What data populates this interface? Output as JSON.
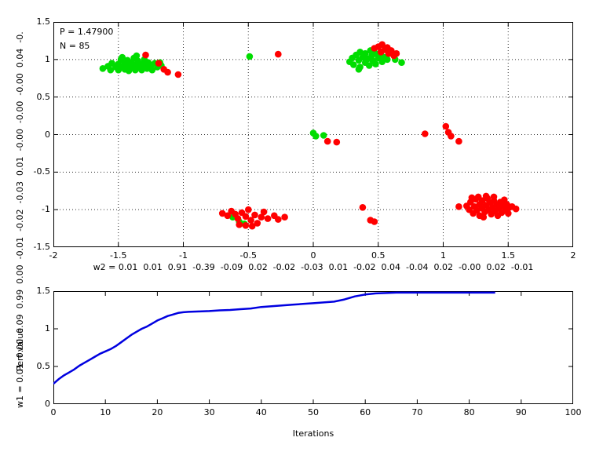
{
  "figure": {
    "background": "#ffffff",
    "axis_color": "#000000",
    "grid_color": "#303030"
  },
  "chart_data": [
    {
      "type": "scatter",
      "title": "",
      "xlabel": "w2 = 0.01  0.01  0.91  -0.39  -0.09  0.02  -0.02  -0.03  0.01  -0.02  0.04  -0.04  0.02  -0.00  0.02  -0.01",
      "ylabel": "w1 = 0.01  0.00  0.09  0.99  0.00  -0.01  -0.02  -0.03  0.01  -0.00  -0.00  -0.00  0.04  -0.",
      "xlim": [
        -2,
        2
      ],
      "ylim": [
        -1.5,
        1.5
      ],
      "xticks": [
        -2,
        -1.5,
        -1,
        -0.5,
        0,
        0.5,
        1,
        1.5,
        2
      ],
      "xtick_labels": [
        "-2",
        "-1.5",
        "-1",
        "-0.5",
        "0",
        "0.5",
        "1",
        "1.5",
        "2"
      ],
      "yticks": [
        -1.5,
        -1,
        -0.5,
        0,
        0.5,
        1,
        1.5
      ],
      "ytick_labels": [
        "-1.5",
        "-1",
        "-0.5",
        "0",
        "0.5",
        "1",
        "1.5"
      ],
      "grid": true,
      "annotations": [
        "P = 1.47900",
        "N = 85"
      ],
      "marker_radius": 4.3,
      "series": [
        {
          "name": "green-points",
          "color": "#00dd00",
          "points": [
            [
              -1.62,
              0.88
            ],
            [
              -1.58,
              0.91
            ],
            [
              -1.56,
              0.86
            ],
            [
              -1.55,
              0.95
            ],
            [
              -1.52,
              0.9
            ],
            [
              -1.5,
              0.94
            ],
            [
              -1.5,
              0.86
            ],
            [
              -1.48,
              1.0
            ],
            [
              -1.47,
              0.9
            ],
            [
              -1.45,
              0.95
            ],
            [
              -1.45,
              0.87
            ],
            [
              -1.43,
              0.99
            ],
            [
              -1.43,
              0.91
            ],
            [
              -1.42,
              0.85
            ],
            [
              -1.4,
              0.96
            ],
            [
              -1.4,
              0.89
            ],
            [
              -1.38,
              1.02
            ],
            [
              -1.38,
              0.93
            ],
            [
              -1.37,
              0.86
            ],
            [
              -1.35,
              0.98
            ],
            [
              -1.35,
              0.9
            ],
            [
              -1.33,
              0.94
            ],
            [
              -1.32,
              0.86
            ],
            [
              -1.3,
              1.0
            ],
            [
              -1.3,
              0.92
            ],
            [
              -1.28,
              0.88
            ],
            [
              -1.27,
              0.96
            ],
            [
              -1.25,
              0.92
            ],
            [
              -1.24,
              0.86
            ],
            [
              -1.22,
              0.95
            ],
            [
              -1.2,
              0.9
            ],
            [
              -1.36,
              1.05
            ],
            [
              -1.47,
              1.03
            ],
            [
              -1.18,
              0.96
            ],
            [
              -1.17,
              0.92
            ],
            [
              0.28,
              0.97
            ],
            [
              0.3,
              1.02
            ],
            [
              0.31,
              0.93
            ],
            [
              0.33,
              1.06
            ],
            [
              0.35,
              0.99
            ],
            [
              0.36,
              1.1
            ],
            [
              0.36,
              0.9
            ],
            [
              0.38,
              1.03
            ],
            [
              0.4,
              0.96
            ],
            [
              0.4,
              1.08
            ],
            [
              0.42,
              1.01
            ],
            [
              0.43,
              0.92
            ],
            [
              0.44,
              1.12
            ],
            [
              0.45,
              1.05
            ],
            [
              0.46,
              0.98
            ],
            [
              0.48,
              1.08
            ],
            [
              0.48,
              0.94
            ],
            [
              0.5,
              1.02
            ],
            [
              0.52,
              1.06
            ],
            [
              0.53,
              0.97
            ],
            [
              0.55,
              1.03
            ],
            [
              0.57,
              1.0
            ],
            [
              0.63,
              1.0
            ],
            [
              0.68,
              0.96
            ],
            [
              0.35,
              0.87
            ],
            [
              -0.49,
              1.04
            ],
            [
              0.0,
              0.02
            ],
            [
              0.02,
              -0.02
            ],
            [
              0.08,
              -0.01
            ],
            [
              -0.62,
              -1.1
            ],
            [
              -0.53,
              -1.19
            ],
            [
              -0.57,
              -1.16
            ]
          ]
        },
        {
          "name": "red-points",
          "color": "#ff0000",
          "points": [
            [
              -1.29,
              1.06
            ],
            [
              -1.19,
              0.95
            ],
            [
              -1.15,
              0.87
            ],
            [
              -1.12,
              0.83
            ],
            [
              -1.04,
              0.8
            ],
            [
              -0.27,
              1.07
            ],
            [
              0.47,
              1.15
            ],
            [
              0.5,
              1.17
            ],
            [
              0.52,
              1.1
            ],
            [
              0.53,
              1.2
            ],
            [
              0.55,
              1.13
            ],
            [
              0.57,
              1.16
            ],
            [
              0.58,
              1.08
            ],
            [
              0.6,
              1.12
            ],
            [
              0.62,
              1.05
            ],
            [
              0.64,
              1.08
            ],
            [
              0.11,
              -0.09
            ],
            [
              0.18,
              -0.1
            ],
            [
              0.86,
              0.01
            ],
            [
              1.02,
              0.11
            ],
            [
              1.04,
              0.03
            ],
            [
              1.06,
              -0.02
            ],
            [
              1.12,
              -0.09
            ],
            [
              0.38,
              -0.97
            ],
            [
              0.44,
              -1.14
            ],
            [
              0.47,
              -1.16
            ],
            [
              -0.7,
              -1.05
            ],
            [
              -0.66,
              -1.08
            ],
            [
              -0.63,
              -1.02
            ],
            [
              -0.6,
              -1.06
            ],
            [
              -0.58,
              -1.12
            ],
            [
              -0.55,
              -1.04
            ],
            [
              -0.52,
              -1.09
            ],
            [
              -0.5,
              -1.0
            ],
            [
              -0.48,
              -1.14
            ],
            [
              -0.45,
              -1.07
            ],
            [
              -0.43,
              -1.18
            ],
            [
              -0.4,
              -1.1
            ],
            [
              -0.38,
              -1.03
            ],
            [
              -0.35,
              -1.12
            ],
            [
              -0.3,
              -1.08
            ],
            [
              -0.27,
              -1.13
            ],
            [
              -0.22,
              -1.1
            ],
            [
              -0.47,
              -1.22
            ],
            [
              -0.52,
              -1.21
            ],
            [
              -0.57,
              -1.2
            ],
            [
              1.12,
              -0.96
            ],
            [
              1.18,
              -0.95
            ],
            [
              1.2,
              -1.0
            ],
            [
              1.21,
              -0.9
            ],
            [
              1.23,
              -1.05
            ],
            [
              1.24,
              -0.96
            ],
            [
              1.25,
              -0.86
            ],
            [
              1.26,
              -1.01
            ],
            [
              1.28,
              -0.93
            ],
            [
              1.28,
              -1.08
            ],
            [
              1.3,
              -0.98
            ],
            [
              1.3,
              -0.88
            ],
            [
              1.32,
              -1.03
            ],
            [
              1.33,
              -0.94
            ],
            [
              1.34,
              -0.85
            ],
            [
              1.35,
              -1.0
            ],
            [
              1.36,
              -0.91
            ],
            [
              1.37,
              -1.06
            ],
            [
              1.38,
              -0.97
            ],
            [
              1.39,
              -0.88
            ],
            [
              1.4,
              -1.02
            ],
            [
              1.41,
              -0.93
            ],
            [
              1.42,
              -1.08
            ],
            [
              1.43,
              -0.98
            ],
            [
              1.44,
              -0.9
            ],
            [
              1.45,
              -1.04
            ],
            [
              1.46,
              -0.95
            ],
            [
              1.47,
              -0.87
            ],
            [
              1.48,
              -1.0
            ],
            [
              1.49,
              -0.93
            ],
            [
              1.5,
              -1.05
            ],
            [
              1.51,
              -0.97
            ],
            [
              1.53,
              -0.96
            ],
            [
              1.56,
              -0.99
            ],
            [
              1.22,
              -0.84
            ],
            [
              1.27,
              -0.83
            ],
            [
              1.33,
              -0.82
            ],
            [
              1.39,
              -0.83
            ],
            [
              1.31,
              -1.1
            ]
          ]
        }
      ]
    },
    {
      "type": "line",
      "title": "",
      "xlabel": "Iterations",
      "ylabel": "Perf value",
      "xlim": [
        0,
        100
      ],
      "ylim": [
        0,
        1.5
      ],
      "xticks": [
        0,
        10,
        20,
        30,
        40,
        50,
        60,
        70,
        80,
        90,
        100
      ],
      "xtick_labels": [
        "0",
        "10",
        "20",
        "30",
        "40",
        "50",
        "60",
        "70",
        "80",
        "90",
        "100"
      ],
      "yticks": [
        0,
        0.5,
        1,
        1.5
      ],
      "ytick_labels": [
        "0",
        "0.5",
        "1",
        "1.5"
      ],
      "grid": false,
      "line_width": 2.5,
      "series": [
        {
          "name": "perf-curve",
          "color": "#0000e0",
          "points": [
            [
              0,
              0.27
            ],
            [
              1,
              0.33
            ],
            [
              2,
              0.38
            ],
            [
              3,
              0.42
            ],
            [
              4,
              0.46
            ],
            [
              5,
              0.51
            ],
            [
              6,
              0.55
            ],
            [
              7,
              0.59
            ],
            [
              8,
              0.63
            ],
            [
              9,
              0.67
            ],
            [
              10,
              0.7
            ],
            [
              11,
              0.73
            ],
            [
              12,
              0.77
            ],
            [
              13,
              0.82
            ],
            [
              14,
              0.87
            ],
            [
              15,
              0.92
            ],
            [
              16,
              0.96
            ],
            [
              17,
              1.0
            ],
            [
              18,
              1.03
            ],
            [
              19,
              1.07
            ],
            [
              20,
              1.11
            ],
            [
              21,
              1.14
            ],
            [
              22,
              1.17
            ],
            [
              23,
              1.19
            ],
            [
              24,
              1.21
            ],
            [
              25,
              1.22
            ],
            [
              26,
              1.225
            ],
            [
              28,
              1.23
            ],
            [
              30,
              1.235
            ],
            [
              32,
              1.245
            ],
            [
              34,
              1.25
            ],
            [
              36,
              1.26
            ],
            [
              38,
              1.27
            ],
            [
              40,
              1.29
            ],
            [
              42,
              1.3
            ],
            [
              44,
              1.31
            ],
            [
              46,
              1.32
            ],
            [
              48,
              1.33
            ],
            [
              50,
              1.34
            ],
            [
              52,
              1.35
            ],
            [
              54,
              1.36
            ],
            [
              56,
              1.39
            ],
            [
              58,
              1.43
            ],
            [
              60,
              1.455
            ],
            [
              62,
              1.47
            ],
            [
              64,
              1.475
            ],
            [
              66,
              1.48
            ],
            [
              70,
              1.48
            ],
            [
              75,
              1.48
            ],
            [
              80,
              1.48
            ],
            [
              85,
              1.48
            ]
          ]
        }
      ]
    }
  ]
}
